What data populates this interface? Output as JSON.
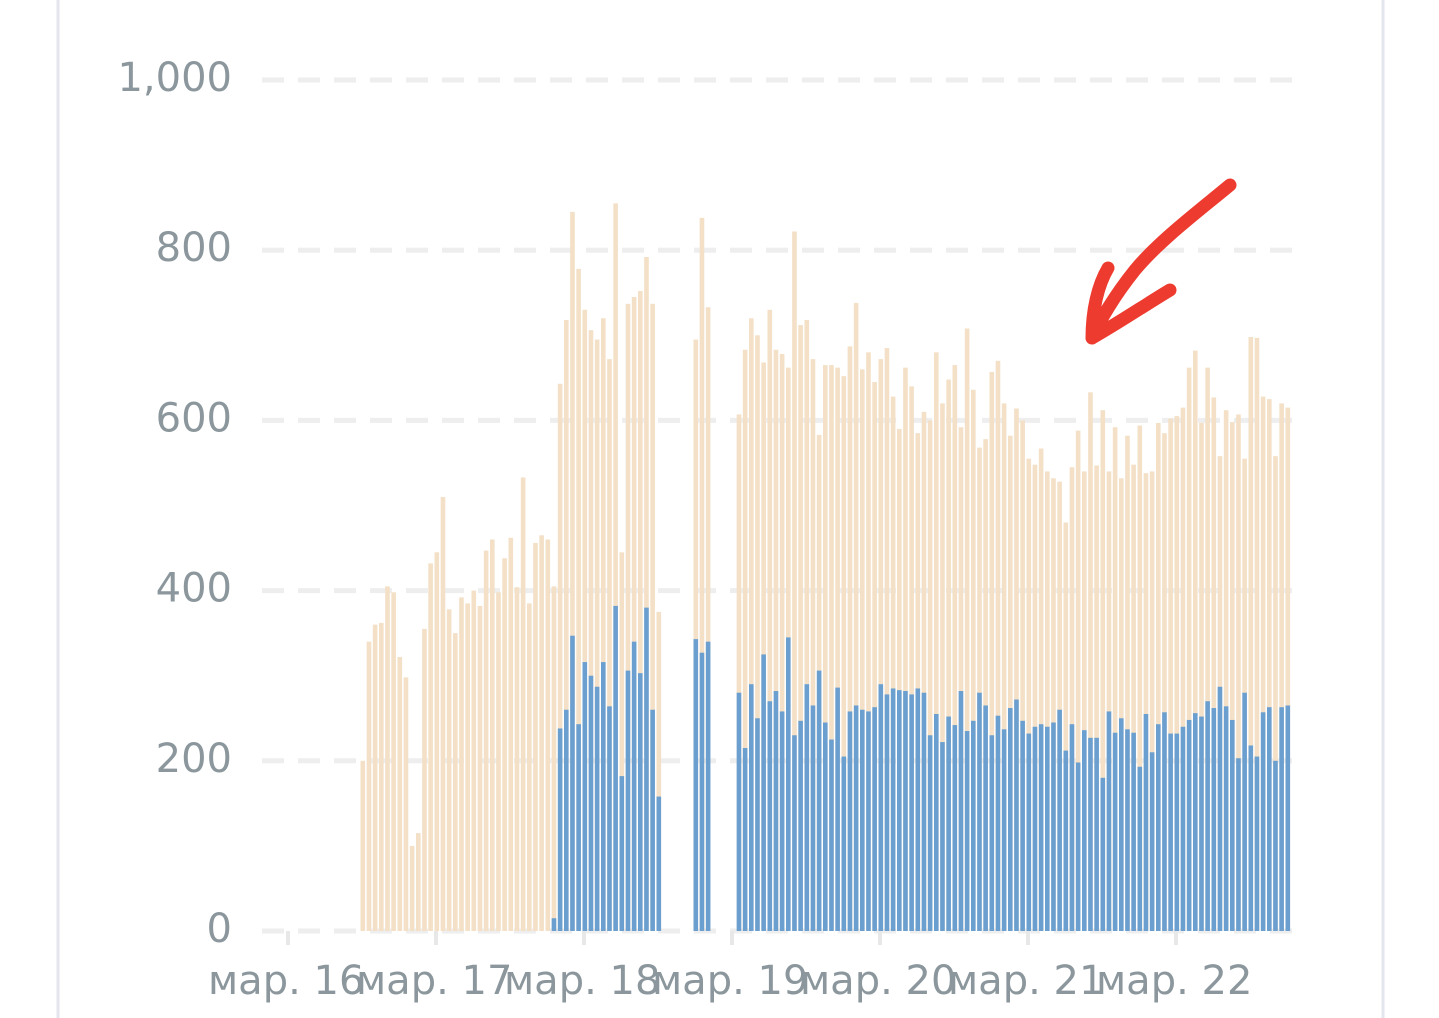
{
  "chart_data": {
    "type": "bar",
    "stacked": false,
    "categories": [
      "мар. 16",
      null,
      null,
      null,
      null,
      null,
      null,
      null,
      null,
      null,
      null,
      null,
      null,
      null,
      null,
      null,
      null,
      null,
      null,
      null,
      null,
      null,
      null,
      null,
      "мар. 17",
      null,
      null,
      null,
      null,
      null,
      null,
      null,
      null,
      null,
      null,
      null,
      null,
      null,
      null,
      null,
      null,
      null,
      null,
      null,
      null,
      null,
      null,
      null,
      "мар. 18",
      null,
      null,
      null,
      null,
      null,
      null,
      null,
      null,
      null,
      null,
      null,
      null,
      null,
      null,
      null,
      null,
      null,
      null,
      null,
      null,
      null,
      null,
      null,
      "мар. 19",
      null,
      null,
      null,
      null,
      null,
      null,
      null,
      null,
      null,
      null,
      null,
      null,
      null,
      null,
      null,
      null,
      null,
      null,
      null,
      null,
      null,
      null,
      null,
      "мар. 20",
      null,
      null,
      null,
      null,
      null,
      null,
      null,
      null,
      null,
      null,
      null,
      null,
      null,
      null,
      null,
      null,
      null,
      null,
      null,
      null,
      null,
      null,
      null,
      "мар. 21",
      null,
      null,
      null,
      null,
      null,
      null,
      null,
      null,
      null,
      null,
      null,
      null,
      null,
      null,
      null,
      null,
      null,
      null,
      null,
      null,
      null,
      null,
      null,
      "мар. 22",
      null,
      null,
      null,
      null,
      null,
      null,
      null,
      null,
      null,
      null,
      null,
      null,
      null,
      null,
      null,
      null,
      null,
      null
    ],
    "series": [
      {
        "color": "#f3e0c6",
        "values": [
          null,
          null,
          null,
          null,
          null,
          null,
          null,
          null,
          null,
          null,
          null,
          null,
          200,
          340,
          360,
          362,
          405,
          398,
          322,
          298,
          100,
          115,
          355,
          432,
          445,
          510,
          378,
          350,
          392,
          385,
          400,
          382,
          447,
          460,
          398,
          438,
          462,
          404,
          533,
          385,
          456,
          465,
          460,
          405,
          643,
          718,
          845,
          778,
          730,
          706,
          695,
          720,
          672,
          855,
          445,
          737,
          745,
          752,
          792,
          737,
          375,
          null,
          null,
          null,
          null,
          null,
          695,
          838,
          733,
          null,
          null,
          null,
          null,
          607,
          683,
          720,
          700,
          668,
          730,
          683,
          678,
          662,
          822,
          712,
          718,
          672,
          583,
          665,
          665,
          662,
          652,
          687,
          738,
          660,
          680,
          645,
          672,
          685,
          628,
          590,
          662,
          640,
          585,
          610,
          600,
          680,
          620,
          648,
          665,
          592,
          708,
          636,
          568,
          578,
          657,
          670,
          620,
          582,
          614,
          600,
          555,
          548,
          567,
          540,
          532,
          528,
          480,
          545,
          588,
          540,
          633,
          547,
          612,
          540,
          592,
          532,
          582,
          548,
          594,
          538,
          540,
          597,
          585,
          602,
          605,
          615,
          662,
          682,
          597,
          662,
          627,
          558,
          612,
          598,
          607,
          555,
          698,
          697,
          628,
          625,
          558,
          620,
          615
        ]
      },
      {
        "color": "#6b9fcf",
        "values": [
          null,
          null,
          null,
          null,
          null,
          null,
          null,
          null,
          null,
          null,
          null,
          null,
          null,
          null,
          null,
          null,
          null,
          null,
          null,
          null,
          null,
          null,
          null,
          null,
          null,
          null,
          null,
          null,
          null,
          null,
          null,
          null,
          null,
          null,
          null,
          null,
          null,
          null,
          null,
          null,
          null,
          null,
          null,
          15,
          238,
          260,
          347,
          243,
          316,
          300,
          287,
          316,
          264,
          382,
          182,
          306,
          340,
          303,
          380,
          260,
          158,
          null,
          null,
          null,
          null,
          null,
          343,
          327,
          340,
          null,
          null,
          null,
          null,
          280,
          215,
          290,
          250,
          325,
          270,
          282,
          258,
          345,
          230,
          247,
          290,
          265,
          306,
          245,
          225,
          286,
          205,
          258,
          265,
          260,
          258,
          263,
          290,
          278,
          285,
          283,
          282,
          278,
          285,
          280,
          230,
          255,
          222,
          252,
          242,
          282,
          235,
          247,
          280,
          265,
          230,
          253,
          237,
          262,
          272,
          247,
          232,
          240,
          243,
          240,
          245,
          260,
          212,
          243,
          198,
          236,
          227,
          227,
          180,
          258,
          233,
          250,
          237,
          233,
          193,
          255,
          210,
          243,
          257,
          232,
          232,
          240,
          248,
          256,
          252,
          270,
          262,
          287,
          264,
          248,
          203,
          280,
          218,
          205,
          257,
          263,
          200,
          263,
          265
        ]
      }
    ],
    "ylim": [
      0,
      1000
    ],
    "yticks": [
      0,
      200,
      400,
      600,
      800,
      {
        "value": 1000,
        "label": "1,000"
      }
    ],
    "grid": true
  }
}
